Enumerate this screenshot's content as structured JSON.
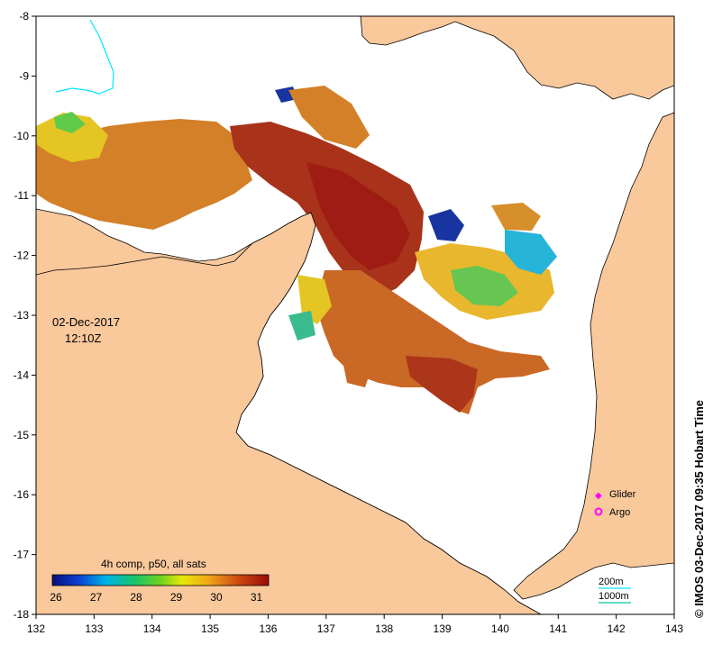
{
  "map": {
    "lon_ticks": [
      "132",
      "133",
      "134",
      "135",
      "136",
      "137",
      "138",
      "139",
      "140",
      "141",
      "142",
      "143"
    ],
    "lat_ticks": [
      "-8",
      "-9",
      "-10",
      "-11",
      "-12",
      "-13",
      "-14",
      "-15",
      "-16",
      "-17",
      "-18"
    ],
    "date": "02-Dec-2017",
    "time": "12:10Z",
    "credit": "© IMOS 03-Dec-2017 09:35 Hobart Time",
    "colors": {
      "land": "#f9c89b",
      "sea": "#ffffff",
      "contour_200m": "#00e5ff",
      "contour_1000m": "#00c0a0",
      "glider": "#ff00ff",
      "argo": "#ff00ff"
    }
  },
  "legend": {
    "title": "4h comp, p50, all sats",
    "ticks": [
      "26",
      "27",
      "28",
      "29",
      "30",
      "31"
    ],
    "glider_label": "Glider",
    "argo_label": "Argo",
    "contour_200m": "200m",
    "contour_1000m": "1000m"
  }
}
